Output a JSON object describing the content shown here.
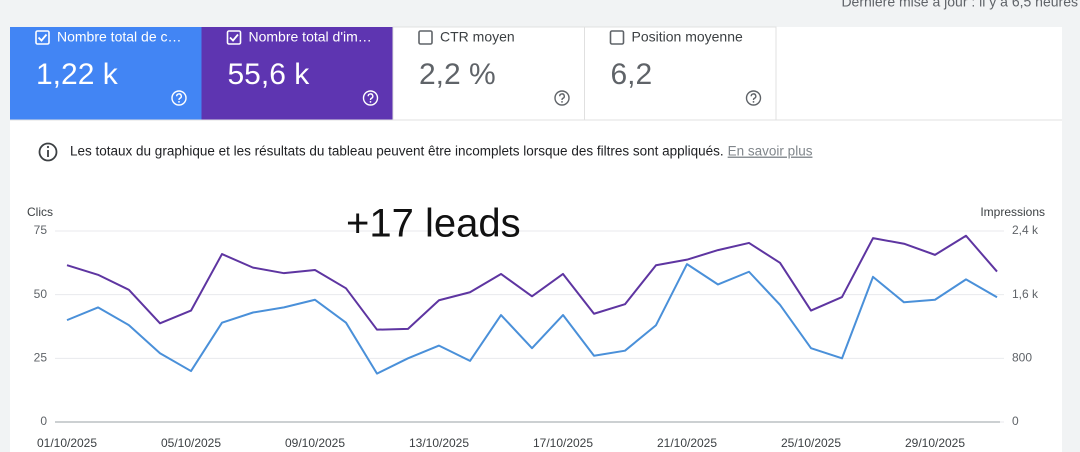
{
  "header": {
    "last_update": "Dernière mise à jour : il y a 6,5 heures"
  },
  "metrics": [
    {
      "label": "Nombre total de c…",
      "value": "1,22 k",
      "checked": true,
      "color": "#4285f4"
    },
    {
      "label": "Nombre total d'im…",
      "value": "55,6 k",
      "checked": true,
      "color": "#5e35b1"
    },
    {
      "label": "CTR moyen",
      "value": "2,2 %",
      "checked": false,
      "color": "#ffffff"
    },
    {
      "label": "Position moyenne",
      "value": "6,2",
      "checked": false,
      "color": "#ffffff"
    }
  ],
  "notice": {
    "text": "Les totaux du graphique et les résultats du tableau peuvent être incomplets lorsque des filtres sont appliqués.",
    "link": "En savoir plus"
  },
  "annotation": "+17 leads",
  "chart_data": {
    "type": "line",
    "ylabel": "Clics",
    "y2label": "Impressions",
    "categories": [
      "01/10/2025",
      null,
      null,
      null,
      "05/10/2025",
      null,
      null,
      null,
      "09/10/2025",
      null,
      null,
      null,
      "13/10/2025",
      null,
      null,
      null,
      "17/10/2025",
      null,
      null,
      null,
      "21/10/2025",
      null,
      null,
      null,
      "25/10/2025",
      null,
      null,
      null,
      "29/10/2025",
      null,
      null
    ],
    "series": [
      {
        "color": "#4a90d9",
        "values": [
          40,
          45,
          38,
          27,
          20,
          39,
          43,
          45,
          48,
          39,
          19,
          25,
          30,
          24,
          42,
          29,
          42,
          26,
          28,
          38,
          62,
          54,
          59,
          46,
          29,
          25,
          57,
          47,
          48,
          56,
          49
        ]
      },
      {
        "color": "#5e35a1",
        "axis": "y2",
        "values": [
          1970,
          1850,
          1660,
          1240,
          1400,
          2110,
          1940,
          1870,
          1910,
          1680,
          1160,
          1170,
          1530,
          1630,
          1860,
          1580,
          1860,
          1360,
          1480,
          1970,
          2040,
          2160,
          2250,
          2000,
          1400,
          1570,
          2310,
          2240,
          2100,
          2340,
          1890
        ]
      }
    ],
    "ylim": [
      0,
      75
    ],
    "yticks": [
      0,
      25,
      50,
      75
    ],
    "y2lim": [
      0,
      2400
    ],
    "y2ticks": [
      0,
      800,
      {
        "value": 1600,
        "label": "1,6 k"
      },
      {
        "value": 2400,
        "label": "2,4 k"
      }
    ],
    "grid": true
  }
}
